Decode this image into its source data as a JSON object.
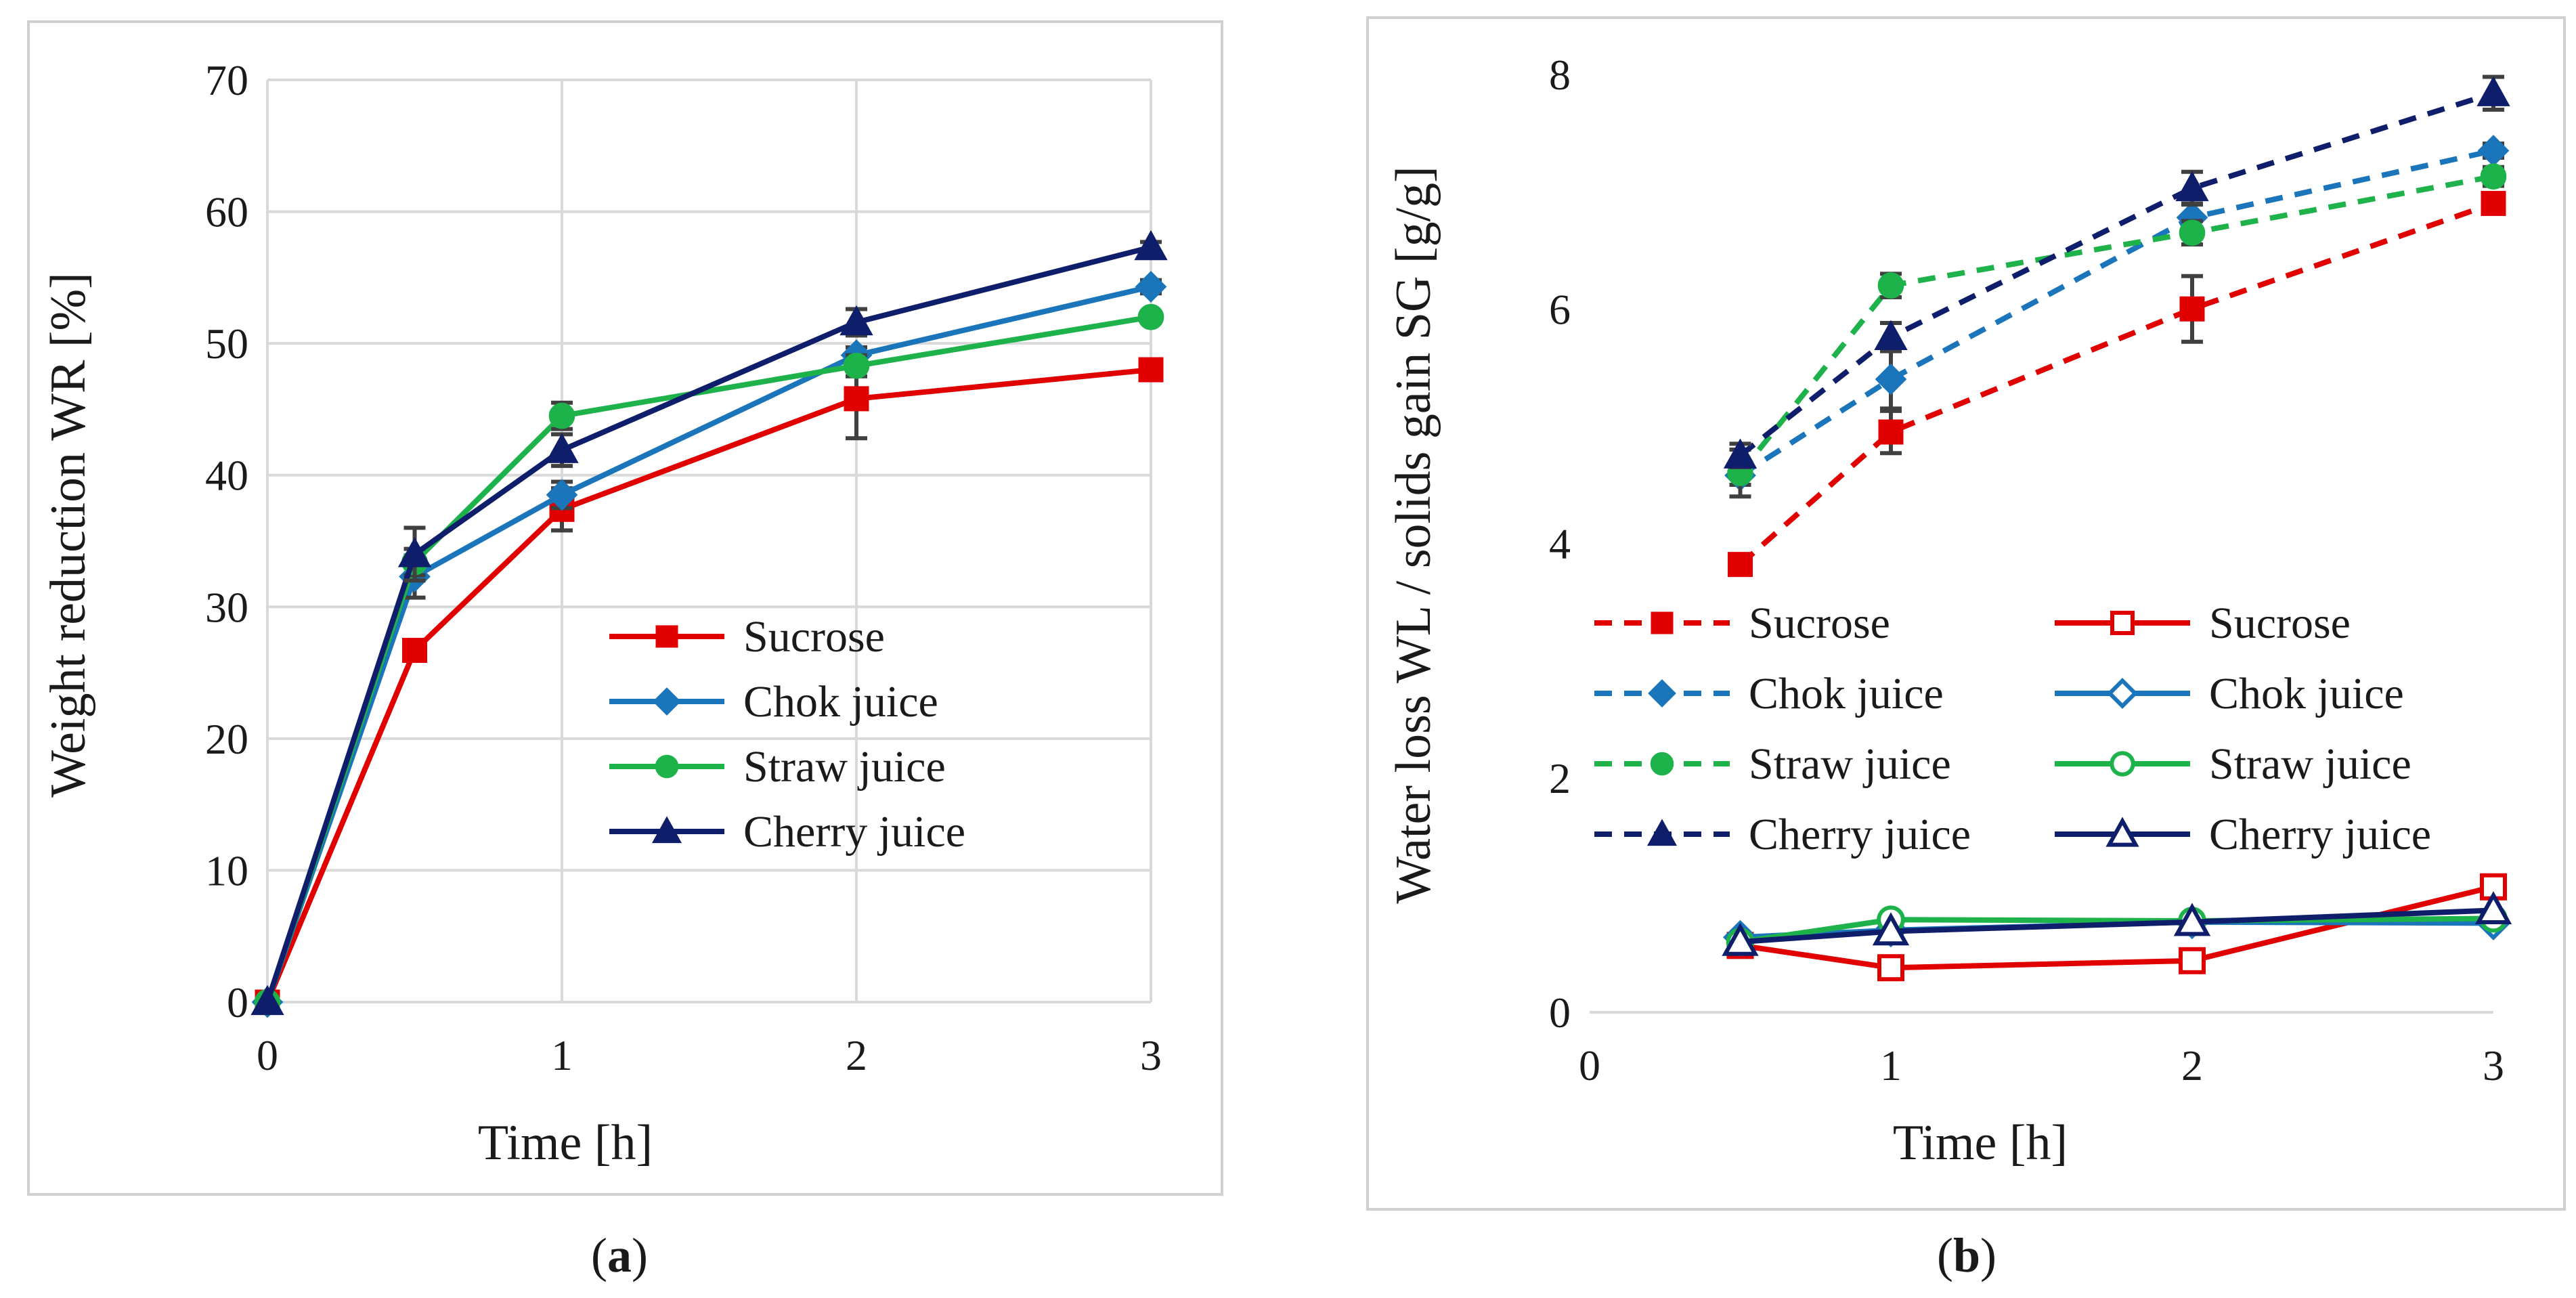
{
  "chart_data": [
    {
      "type": "line",
      "panel_label": "a",
      "xlabel": "Time [h]",
      "ylabel": "Weight reduction WR [%]",
      "xlim": [
        0,
        3
      ],
      "ylim": [
        0,
        70
      ],
      "xticks": [
        0,
        1,
        2,
        3
      ],
      "yticks": [
        0,
        10,
        20,
        30,
        40,
        50,
        60,
        70
      ],
      "grid": true,
      "legend_position": "center-right",
      "x": [
        0,
        0.5,
        1,
        2,
        3
      ],
      "series": [
        {
          "name": "Sucrose",
          "color": "#e00000",
          "marker": "square",
          "dashed": false,
          "values": [
            0,
            26.7,
            37.4,
            45.8,
            48.0
          ],
          "errors": [
            0,
            0.5,
            1.6,
            3.0,
            0.6
          ]
        },
        {
          "name": "Chok juice",
          "color": "#1b75bb",
          "marker": "diamond",
          "dashed": false,
          "values": [
            0,
            32.3,
            38.5,
            49.1,
            54.3
          ],
          "errors": [
            0,
            1.6,
            1.0,
            0.6,
            0.5
          ]
        },
        {
          "name": "Straw juice",
          "color": "#1eb24b",
          "marker": "circle",
          "dashed": false,
          "values": [
            0,
            33.4,
            44.5,
            48.3,
            52.0
          ],
          "errors": [
            0,
            1.0,
            1.0,
            0.8,
            0.4
          ]
        },
        {
          "name": "Cherry juice",
          "color": "#0f1e6b",
          "marker": "triangle",
          "dashed": false,
          "values": [
            0,
            34.0,
            41.9,
            51.6,
            57.3
          ],
          "errors": [
            0,
            2.0,
            1.2,
            1.0,
            0.4
          ]
        }
      ]
    },
    {
      "type": "line",
      "panel_label": "b",
      "xlabel": "Time [h]",
      "ylabel": "Water loss WL / solids gain SG [g/g]",
      "xlim": [
        0,
        3
      ],
      "ylim": [
        0,
        8
      ],
      "xticks": [
        0,
        1,
        2,
        3
      ],
      "yticks": [
        0,
        2,
        4,
        6,
        8
      ],
      "grid": false,
      "legend_position": "center",
      "x": [
        0.5,
        1,
        2,
        3
      ],
      "series": [
        {
          "name": "Sucrose",
          "color": "#e00000",
          "marker": "square",
          "dashed": true,
          "values": [
            3.82,
            4.95,
            6.0,
            6.9
          ],
          "errors": [
            0.06,
            0.18,
            0.28,
            0.07
          ]
        },
        {
          "name": "Chok juice",
          "color": "#1b75bb",
          "marker": "diamond",
          "dashed": true,
          "values": [
            4.58,
            5.4,
            6.78,
            7.35
          ],
          "errors": [
            0.08,
            0.25,
            0.12,
            0.06
          ]
        },
        {
          "name": "Straw juice",
          "color": "#1eb24b",
          "marker": "circle",
          "dashed": true,
          "values": [
            4.6,
            6.2,
            6.65,
            7.13
          ],
          "errors": [
            0.2,
            0.1,
            0.1,
            0.08
          ]
        },
        {
          "name": "Cherry juice",
          "color": "#0f1e6b",
          "marker": "triangle",
          "dashed": true,
          "values": [
            4.75,
            5.76,
            7.03,
            7.84
          ],
          "errors": [
            0.1,
            0.12,
            0.14,
            0.14
          ]
        },
        {
          "name": "Sucrose",
          "color": "#e00000",
          "marker": "square-open",
          "dashed": false,
          "values": [
            0.57,
            0.38,
            0.44,
            1.07
          ],
          "errors": [
            0,
            0,
            0,
            0
          ]
        },
        {
          "name": "Chok juice",
          "color": "#1b75bb",
          "marker": "diamond-open",
          "dashed": false,
          "values": [
            0.64,
            0.7,
            0.77,
            0.76
          ],
          "errors": [
            0,
            0,
            0,
            0
          ]
        },
        {
          "name": "Straw juice",
          "color": "#1eb24b",
          "marker": "circle-open",
          "dashed": false,
          "values": [
            0.6,
            0.79,
            0.78,
            0.8
          ],
          "errors": [
            0,
            0,
            0,
            0
          ]
        },
        {
          "name": "Cherry juice",
          "color": "#0f1e6b",
          "marker": "triangle-open",
          "dashed": false,
          "values": [
            0.6,
            0.69,
            0.77,
            0.87
          ],
          "errors": [
            0,
            0,
            0,
            0
          ]
        }
      ]
    }
  ]
}
